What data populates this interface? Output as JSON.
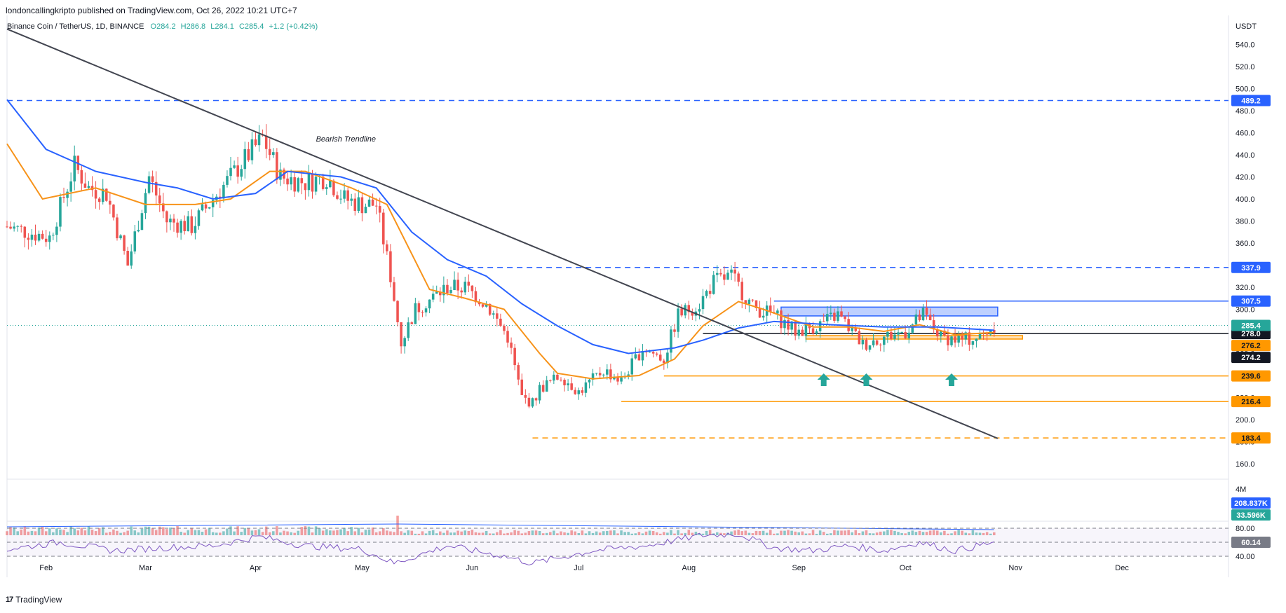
{
  "header": {
    "published": "londoncallingkripto published on TradingView.com, Oct 26, 2022 10:21 UTC+7",
    "symbol": "Binance Coin / TetherUS, 1D, BINANCE",
    "ohlc": {
      "o": "O284.2",
      "h": "H286.8",
      "l": "L284.1",
      "c": "C285.4",
      "chg": "+1.2 (+0.42%)"
    }
  },
  "footer": {
    "brand": "TradingView",
    "logo": "17"
  },
  "colors": {
    "up": "#26a69a",
    "down": "#ef5350",
    "ma_fast": "#f7931a",
    "ma_slow": "#2962ff",
    "trend": "#434651",
    "rsi": "#7e57c2",
    "orange": "#ff9800",
    "blue": "#2962ff"
  },
  "chart_data": {
    "type": "candlestick",
    "title": "Binance Coin / TetherUS, 1D, BINANCE",
    "currency": "USDT",
    "ylim": [
      160,
      560
    ],
    "y_ticks": [
      160,
      180,
      200,
      220,
      240,
      260,
      280,
      300,
      320,
      340,
      360,
      380,
      400,
      420,
      440,
      460,
      480,
      500,
      520,
      540
    ],
    "x_ticks": [
      {
        "label": "Feb",
        "date": "2022-02-01"
      },
      {
        "label": "Mar",
        "date": "2022-03-01"
      },
      {
        "label": "Apr",
        "date": "2022-04-01"
      },
      {
        "label": "May",
        "date": "2022-05-01"
      },
      {
        "label": "Jun",
        "date": "2022-06-01"
      },
      {
        "label": "Jul",
        "date": "2022-07-01"
      },
      {
        "label": "Aug",
        "date": "2022-08-01"
      },
      {
        "label": "Sep",
        "date": "2022-09-01"
      },
      {
        "label": "Oct",
        "date": "2022-10-01"
      },
      {
        "label": "Nov",
        "date": "2022-11-01"
      },
      {
        "label": "Dec",
        "date": "2022-12-01"
      }
    ],
    "date_range": [
      "2022-01-21",
      "2022-12-31"
    ],
    "last_price": "285.4",
    "price_path": [
      [
        "2022-01-21",
        375
      ],
      [
        "2022-01-27",
        370
      ],
      [
        "2022-02-02",
        365
      ],
      [
        "2022-02-09",
        430
      ],
      [
        "2022-02-13",
        410
      ],
      [
        "2022-02-18",
        405
      ],
      [
        "2022-02-24",
        340
      ],
      [
        "2022-03-02",
        420
      ],
      [
        "2022-03-07",
        380
      ],
      [
        "2022-03-14",
        375
      ],
      [
        "2022-03-20",
        400
      ],
      [
        "2022-03-30",
        440
      ],
      [
        "2022-04-03",
        455
      ],
      [
        "2022-04-08",
        420
      ],
      [
        "2022-04-15",
        415
      ],
      [
        "2022-04-21",
        420
      ],
      [
        "2022-04-26",
        400
      ],
      [
        "2022-05-01",
        395
      ],
      [
        "2022-05-05",
        395
      ],
      [
        "2022-05-09",
        330
      ],
      [
        "2022-05-12",
        270
      ],
      [
        "2022-05-16",
        300
      ],
      [
        "2022-05-25",
        320
      ],
      [
        "2022-05-30",
        320
      ],
      [
        "2022-06-05",
        305
      ],
      [
        "2022-06-11",
        275
      ],
      [
        "2022-06-15",
        220
      ],
      [
        "2022-06-18",
        215
      ],
      [
        "2022-06-20",
        228
      ],
      [
        "2022-06-26",
        240
      ],
      [
        "2022-07-01",
        225
      ],
      [
        "2022-07-08",
        245
      ],
      [
        "2022-07-13",
        235
      ],
      [
        "2022-07-19",
        265
      ],
      [
        "2022-07-25",
        255
      ],
      [
        "2022-07-29",
        295
      ],
      [
        "2022-08-04",
        305
      ],
      [
        "2022-08-08",
        325
      ],
      [
        "2022-08-13",
        330
      ],
      [
        "2022-08-19",
        302
      ],
      [
        "2022-08-25",
        295
      ],
      [
        "2022-08-31",
        280
      ],
      [
        "2022-09-06",
        285
      ],
      [
        "2022-09-12",
        295
      ],
      [
        "2022-09-19",
        268
      ],
      [
        "2022-09-25",
        275
      ],
      [
        "2022-10-01",
        280
      ],
      [
        "2022-10-06",
        295
      ],
      [
        "2022-10-11",
        275
      ],
      [
        "2022-10-17",
        272
      ],
      [
        "2022-10-22",
        275
      ],
      [
        "2022-10-26",
        285.4
      ]
    ],
    "moving_averages": [
      {
        "color": "#f7931a",
        "points": [
          [
            "2022-01-21",
            450
          ],
          [
            "2022-01-31",
            400
          ],
          [
            "2022-02-15",
            410
          ],
          [
            "2022-03-01",
            395
          ],
          [
            "2022-03-15",
            395
          ],
          [
            "2022-03-25",
            400
          ],
          [
            "2022-04-05",
            425
          ],
          [
            "2022-04-15",
            425
          ],
          [
            "2022-04-28",
            410
          ],
          [
            "2022-05-08",
            395
          ],
          [
            "2022-05-20",
            318
          ],
          [
            "2022-05-30",
            310
          ],
          [
            "2022-06-10",
            300
          ],
          [
            "2022-06-20",
            260
          ],
          [
            "2022-06-25",
            242
          ],
          [
            "2022-07-05",
            237
          ],
          [
            "2022-07-18",
            240
          ],
          [
            "2022-07-28",
            255
          ],
          [
            "2022-08-05",
            285
          ],
          [
            "2022-08-15",
            307
          ],
          [
            "2022-08-22",
            300
          ],
          [
            "2022-09-05",
            284
          ],
          [
            "2022-09-15",
            284
          ],
          [
            "2022-09-25",
            280
          ],
          [
            "2022-10-05",
            286
          ],
          [
            "2022-10-15",
            277
          ],
          [
            "2022-10-26",
            279
          ]
        ]
      },
      {
        "color": "#2962ff",
        "points": [
          [
            "2022-01-21",
            490
          ],
          [
            "2022-02-01",
            445
          ],
          [
            "2022-02-15",
            425
          ],
          [
            "2022-03-01",
            415
          ],
          [
            "2022-03-10",
            410
          ],
          [
            "2022-03-20",
            400
          ],
          [
            "2022-04-01",
            405
          ],
          [
            "2022-04-10",
            425
          ],
          [
            "2022-04-25",
            420
          ],
          [
            "2022-05-05",
            410
          ],
          [
            "2022-05-15",
            370
          ],
          [
            "2022-05-25",
            345
          ],
          [
            "2022-06-05",
            330
          ],
          [
            "2022-06-15",
            305
          ],
          [
            "2022-06-25",
            285
          ],
          [
            "2022-07-05",
            268
          ],
          [
            "2022-07-15",
            260
          ],
          [
            "2022-07-28",
            265
          ],
          [
            "2022-08-05",
            272
          ],
          [
            "2022-08-15",
            283
          ],
          [
            "2022-08-25",
            289
          ],
          [
            "2022-09-10",
            286
          ],
          [
            "2022-09-25",
            284
          ],
          [
            "2022-10-10",
            284
          ],
          [
            "2022-10-26",
            281
          ]
        ]
      }
    ],
    "trendline": {
      "start": [
        "2022-01-21",
        554
      ],
      "end": [
        "2022-10-27",
        183
      ]
    },
    "trendline_label": "Bearish Trendline",
    "horizontal_levels": [
      {
        "value": 489.2,
        "label": "489.2",
        "style": "dashed",
        "color": "#2962ff",
        "from": "2022-01-21"
      },
      {
        "value": 337.9,
        "label": "337.9",
        "style": "dashed",
        "color": "#2962ff",
        "from": "2022-05-28"
      },
      {
        "value": 307.5,
        "label": "307.5",
        "style": "solid",
        "color": "#2962ff",
        "from": "2022-08-25"
      },
      {
        "value": 278.0,
        "label": "278.0",
        "style": "solid",
        "color": "#131722",
        "from": "2022-08-05"
      },
      {
        "value": 239.6,
        "label": "239.6",
        "style": "solid",
        "color": "#ff9800",
        "from": "2022-07-25"
      },
      {
        "value": 216.4,
        "label": "216.4",
        "style": "solid",
        "color": "#ff9800",
        "from": "2022-07-13"
      },
      {
        "value": 183.4,
        "label": "183.4",
        "style": "dashed",
        "color": "#ff9800",
        "from": "2022-06-18"
      }
    ],
    "zones": [
      {
        "from": "2022-08-27",
        "to": "2022-10-27",
        "top": 302,
        "bottom": 294,
        "color": "#2962ff"
      },
      {
        "from": "2022-09-03",
        "to": "2022-11-03",
        "top": 276.2,
        "bottom": 274.2,
        "color": "#ff9800"
      }
    ],
    "zone_labels": [
      {
        "label": "276.2",
        "color": "#ff9800"
      },
      {
        "label": "274.2",
        "color": "#131722"
      }
    ],
    "up_arrows": [
      "2022-09-08",
      "2022-09-20",
      "2022-10-14"
    ],
    "last_price_label": "285.4",
    "volume": {
      "axis_label": "4M",
      "labels": [
        {
          "label": "208.837K",
          "color": "#2962ff"
        },
        {
          "label": "33.596K",
          "color": "#26a69a"
        }
      ],
      "spike": {
        "date": "2022-05-11",
        "value": 4000000
      }
    },
    "rsi": {
      "levels": [
        80,
        60,
        40
      ],
      "axis_labels": [
        "80.00",
        "40.00"
      ],
      "current": "60.14",
      "path": [
        [
          "2022-01-21",
          50
        ],
        [
          "2022-02-05",
          60
        ],
        [
          "2022-02-20",
          48
        ],
        [
          "2022-03-05",
          52
        ],
        [
          "2022-03-20",
          55
        ],
        [
          "2022-04-02",
          68
        ],
        [
          "2022-04-15",
          55
        ],
        [
          "2022-05-01",
          50
        ],
        [
          "2022-05-10",
          30
        ],
        [
          "2022-05-25",
          55
        ],
        [
          "2022-06-10",
          40
        ],
        [
          "2022-06-18",
          30
        ],
        [
          "2022-07-05",
          48
        ],
        [
          "2022-07-20",
          55
        ],
        [
          "2022-08-05",
          70
        ],
        [
          "2022-08-15",
          72
        ],
        [
          "2022-08-25",
          52
        ],
        [
          "2022-09-05",
          48
        ],
        [
          "2022-09-15",
          55
        ],
        [
          "2022-09-25",
          48
        ],
        [
          "2022-10-05",
          60
        ],
        [
          "2022-10-15",
          48
        ],
        [
          "2022-10-26",
          60
        ]
      ]
    }
  }
}
